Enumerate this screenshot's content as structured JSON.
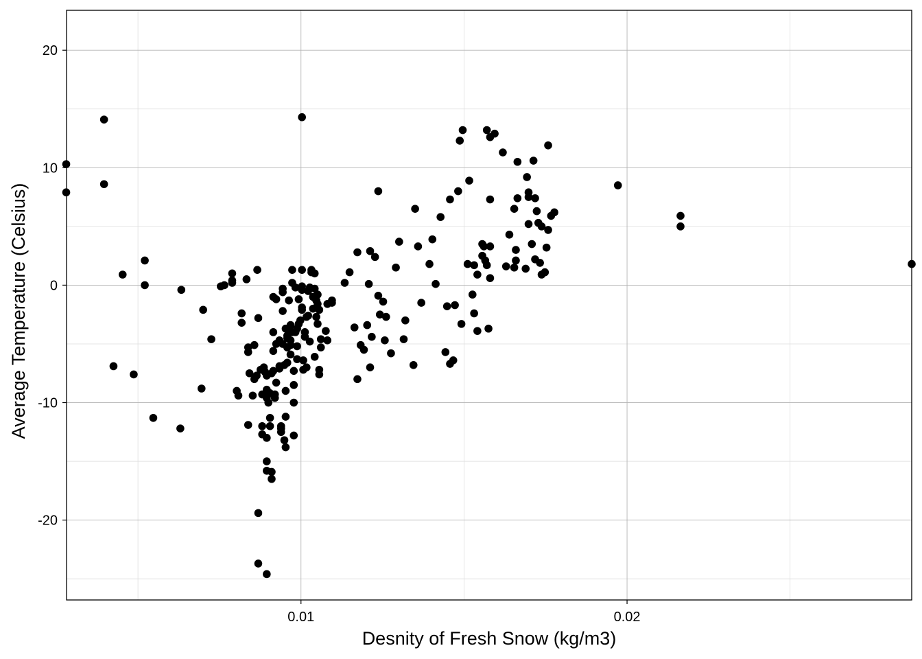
{
  "chart_data": {
    "type": "scatter",
    "title": "",
    "xlabel": "Desnity of Fresh Snow (kg/m3)",
    "ylabel": "Average Temperature (Celsius)",
    "xlim": [
      0.00281,
      0.02873
    ],
    "ylim": [
      -26.8,
      23.4
    ],
    "x_ticks": [
      0.01,
      0.02
    ],
    "x_tick_labels": [
      "0.01",
      "0.02"
    ],
    "x_minor_ticks": [
      0.005,
      0.015,
      0.025
    ],
    "y_ticks": [
      -20,
      -10,
      0,
      10,
      20
    ],
    "y_tick_labels": [
      "-20",
      "-10",
      "0",
      "10",
      "20"
    ],
    "y_minor_ticks": [
      -25,
      -15,
      -5,
      5,
      15
    ],
    "grid": true,
    "legend": "none",
    "point_color": "#000000",
    "series": [
      {
        "points": [
          [
            0.0028,
            10.3
          ],
          [
            0.0028,
            7.9
          ],
          [
            0.00396,
            14.1
          ],
          [
            0.00396,
            8.6
          ],
          [
            0.00453,
            0.9
          ],
          [
            0.00425,
            -6.9
          ],
          [
            0.00487,
            -7.6
          ],
          [
            0.00521,
            2.1
          ],
          [
            0.00521,
            0.0
          ],
          [
            0.00547,
            -11.3
          ],
          [
            0.0063,
            -12.2
          ],
          [
            0.00633,
            -0.4
          ],
          [
            0.00695,
            -8.8
          ],
          [
            0.007,
            -2.1
          ],
          [
            0.00725,
            -4.6
          ],
          [
            0.00754,
            -0.1
          ],
          [
            0.00765,
            0.0
          ],
          [
            0.00789,
            1.0
          ],
          [
            0.00789,
            0.4
          ],
          [
            0.00789,
            0.2
          ],
          [
            0.00803,
            -9.0
          ],
          [
            0.00808,
            -9.4
          ],
          [
            0.00818,
            -2.4
          ],
          [
            0.00818,
            -3.2
          ],
          [
            0.00833,
            0.5
          ],
          [
            0.00838,
            -5.3
          ],
          [
            0.00838,
            -5.7
          ],
          [
            0.00838,
            -11.9
          ],
          [
            0.00842,
            -7.5
          ],
          [
            0.00857,
            -5.1
          ],
          [
            0.00857,
            -8.0
          ],
          [
            0.00852,
            -9.4
          ],
          [
            0.00864,
            -7.7
          ],
          [
            0.00866,
            1.3
          ],
          [
            0.00869,
            -2.8
          ],
          [
            0.00869,
            -19.4
          ],
          [
            0.00869,
            -23.7
          ],
          [
            0.00876,
            -7.2
          ],
          [
            0.00881,
            -9.3
          ],
          [
            0.00881,
            -12.0
          ],
          [
            0.00881,
            -12.7
          ],
          [
            0.00886,
            -7.0
          ],
          [
            0.0089,
            -7.4
          ],
          [
            0.00895,
            -9.3
          ],
          [
            0.00895,
            -9.6
          ],
          [
            0.00895,
            -8.9
          ],
          [
            0.00895,
            -7.7
          ],
          [
            0.00895,
            -13.0
          ],
          [
            0.00895,
            -15.0
          ],
          [
            0.00895,
            -15.8
          ],
          [
            0.00895,
            -24.6
          ],
          [
            0.009,
            -10.0
          ],
          [
            0.00905,
            -11.3
          ],
          [
            0.00905,
            -9.2
          ],
          [
            0.00905,
            -12.0
          ],
          [
            0.0091,
            -16.5
          ],
          [
            0.0091,
            -15.9
          ],
          [
            0.0091,
            -7.5
          ],
          [
            0.00915,
            -4.0
          ],
          [
            0.00915,
            -5.6
          ],
          [
            0.00915,
            -7.3
          ],
          [
            0.00915,
            -1.0
          ],
          [
            0.0092,
            -9.3
          ],
          [
            0.0092,
            -9.6
          ],
          [
            0.00924,
            -1.2
          ],
          [
            0.00924,
            -5.0
          ],
          [
            0.00924,
            -8.3
          ],
          [
            0.00934,
            -4.7
          ],
          [
            0.00934,
            -7.1
          ],
          [
            0.00934,
            -6.9
          ],
          [
            0.00939,
            -12.0
          ],
          [
            0.00939,
            -12.2
          ],
          [
            0.00939,
            -12.5
          ],
          [
            0.00944,
            -2.2
          ],
          [
            0.00944,
            -0.3
          ],
          [
            0.00944,
            -0.6
          ],
          [
            0.00944,
            -5.0
          ],
          [
            0.00949,
            -13.2
          ],
          [
            0.00949,
            -6.8
          ],
          [
            0.00953,
            -9.0
          ],
          [
            0.00953,
            -11.2
          ],
          [
            0.00953,
            -13.8
          ],
          [
            0.00953,
            -3.7
          ],
          [
            0.00958,
            -4.3
          ],
          [
            0.00958,
            -4.5
          ],
          [
            0.00958,
            -5.3
          ],
          [
            0.00958,
            -6.6
          ],
          [
            0.00963,
            -1.3
          ],
          [
            0.00963,
            -3.8
          ],
          [
            0.00963,
            -4.0
          ],
          [
            0.00968,
            -5.9
          ],
          [
            0.00968,
            -5.1
          ],
          [
            0.00968,
            -4.7
          ],
          [
            0.00968,
            -3.4
          ],
          [
            0.00973,
            1.3
          ],
          [
            0.00973,
            0.2
          ],
          [
            0.00973,
            -4.0
          ],
          [
            0.00978,
            -7.3
          ],
          [
            0.00978,
            -8.5
          ],
          [
            0.00978,
            -10.0
          ],
          [
            0.00978,
            -12.8
          ],
          [
            0.00983,
            -0.2
          ],
          [
            0.00983,
            -4.0
          ],
          [
            0.00988,
            -3.7
          ],
          [
            0.00988,
            -5.2
          ],
          [
            0.00988,
            -6.3
          ],
          [
            0.00993,
            -1.2
          ],
          [
            0.00993,
            -3.3
          ],
          [
            0.00998,
            -3.0
          ],
          [
            0.01003,
            -2.1
          ],
          [
            0.01003,
            -1.9
          ],
          [
            0.01003,
            -0.4
          ],
          [
            0.01003,
            -0.1
          ],
          [
            0.01003,
            1.3
          ],
          [
            0.01003,
            14.3
          ],
          [
            0.01007,
            -7.2
          ],
          [
            0.01007,
            -6.4
          ],
          [
            0.01012,
            -4.0
          ],
          [
            0.01012,
            -4.4
          ],
          [
            0.01017,
            -2.7
          ],
          [
            0.01017,
            -7.0
          ],
          [
            0.01022,
            -0.5
          ],
          [
            0.01022,
            -2.6
          ],
          [
            0.01027,
            -4.8
          ],
          [
            0.01027,
            -0.2
          ],
          [
            0.01032,
            1.3
          ],
          [
            0.01032,
            1.1
          ],
          [
            0.01037,
            -1.0
          ],
          [
            0.01037,
            -2.0
          ],
          [
            0.01042,
            1.0
          ],
          [
            0.01042,
            -0.3
          ],
          [
            0.01042,
            -6.1
          ],
          [
            0.01047,
            -1.3
          ],
          [
            0.01047,
            -2.7
          ],
          [
            0.01051,
            -0.8
          ],
          [
            0.01051,
            -1.6
          ],
          [
            0.01051,
            -3.3
          ],
          [
            0.01056,
            -7.2
          ],
          [
            0.01056,
            -7.6
          ],
          [
            0.01056,
            -2.1
          ],
          [
            0.01061,
            -4.6
          ],
          [
            0.01061,
            -5.3
          ],
          [
            0.01076,
            -3.9
          ],
          [
            0.01081,
            -1.6
          ],
          [
            0.01081,
            -4.7
          ],
          [
            0.01095,
            -1.5
          ],
          [
            0.01095,
            -1.3
          ],
          [
            0.01134,
            0.2
          ],
          [
            0.01149,
            1.1
          ],
          [
            0.01164,
            -3.6
          ],
          [
            0.01173,
            2.8
          ],
          [
            0.01173,
            -8.0
          ],
          [
            0.01183,
            -5.1
          ],
          [
            0.01193,
            -5.5
          ],
          [
            0.01203,
            -3.4
          ],
          [
            0.01208,
            0.1
          ],
          [
            0.01212,
            -7.0
          ],
          [
            0.01212,
            2.9
          ],
          [
            0.01217,
            -4.4
          ],
          [
            0.01227,
            2.4
          ],
          [
            0.01237,
            -0.9
          ],
          [
            0.01237,
            8.0
          ],
          [
            0.01242,
            -2.5
          ],
          [
            0.01252,
            -1.4
          ],
          [
            0.01257,
            -4.7
          ],
          [
            0.01261,
            -2.7
          ],
          [
            0.01276,
            -5.8
          ],
          [
            0.01291,
            1.5
          ],
          [
            0.01301,
            3.7
          ],
          [
            0.01315,
            -4.6
          ],
          [
            0.0132,
            -3.0
          ],
          [
            0.01345,
            -6.8
          ],
          [
            0.0135,
            6.5
          ],
          [
            0.01359,
            3.3
          ],
          [
            0.01369,
            -1.5
          ],
          [
            0.01394,
            1.8
          ],
          [
            0.01403,
            3.9
          ],
          [
            0.01413,
            0.1
          ],
          [
            0.01428,
            5.8
          ],
          [
            0.01443,
            -5.7
          ],
          [
            0.01448,
            -1.8
          ],
          [
            0.01457,
            7.3
          ],
          [
            0.01457,
            -6.7
          ],
          [
            0.01467,
            -6.4
          ],
          [
            0.01472,
            -1.7
          ],
          [
            0.01482,
            8.0
          ],
          [
            0.01487,
            12.3
          ],
          [
            0.01492,
            -3.3
          ],
          [
            0.01496,
            13.2
          ],
          [
            0.01511,
            1.8
          ],
          [
            0.01516,
            8.9
          ],
          [
            0.01526,
            -0.8
          ],
          [
            0.01531,
            -2.4
          ],
          [
            0.01531,
            1.7
          ],
          [
            0.01541,
            0.9
          ],
          [
            0.01541,
            -3.9
          ],
          [
            0.01556,
            2.5
          ],
          [
            0.01556,
            3.5
          ],
          [
            0.01561,
            3.3
          ],
          [
            0.01565,
            2.1
          ],
          [
            0.0157,
            13.2
          ],
          [
            0.0157,
            1.7
          ],
          [
            0.01575,
            -3.7
          ],
          [
            0.0158,
            0.6
          ],
          [
            0.0158,
            7.3
          ],
          [
            0.0158,
            3.3
          ],
          [
            0.0158,
            12.6
          ],
          [
            0.01594,
            12.9
          ],
          [
            0.01619,
            11.3
          ],
          [
            0.01629,
            1.6
          ],
          [
            0.01639,
            4.3
          ],
          [
            0.01654,
            6.5
          ],
          [
            0.01654,
            1.5
          ],
          [
            0.01659,
            3.0
          ],
          [
            0.01659,
            2.1
          ],
          [
            0.01664,
            7.4
          ],
          [
            0.01664,
            10.5
          ],
          [
            0.01689,
            1.4
          ],
          [
            0.01693,
            9.2
          ],
          [
            0.01698,
            5.2
          ],
          [
            0.01698,
            7.9
          ],
          [
            0.01698,
            7.5
          ],
          [
            0.01708,
            3.5
          ],
          [
            0.01713,
            10.6
          ],
          [
            0.01718,
            7.4
          ],
          [
            0.01718,
            2.2
          ],
          [
            0.01723,
            6.3
          ],
          [
            0.01728,
            5.3
          ],
          [
            0.01733,
            1.9
          ],
          [
            0.01738,
            0.9
          ],
          [
            0.01738,
            5.0
          ],
          [
            0.01748,
            1.1
          ],
          [
            0.01753,
            3.2
          ],
          [
            0.01758,
            11.9
          ],
          [
            0.01758,
            4.7
          ],
          [
            0.01767,
            5.9
          ],
          [
            0.01777,
            6.2
          ],
          [
            0.01972,
            8.5
          ],
          [
            0.02164,
            5.9
          ],
          [
            0.02164,
            5.0
          ],
          [
            0.02873,
            1.8
          ]
        ]
      }
    ]
  }
}
